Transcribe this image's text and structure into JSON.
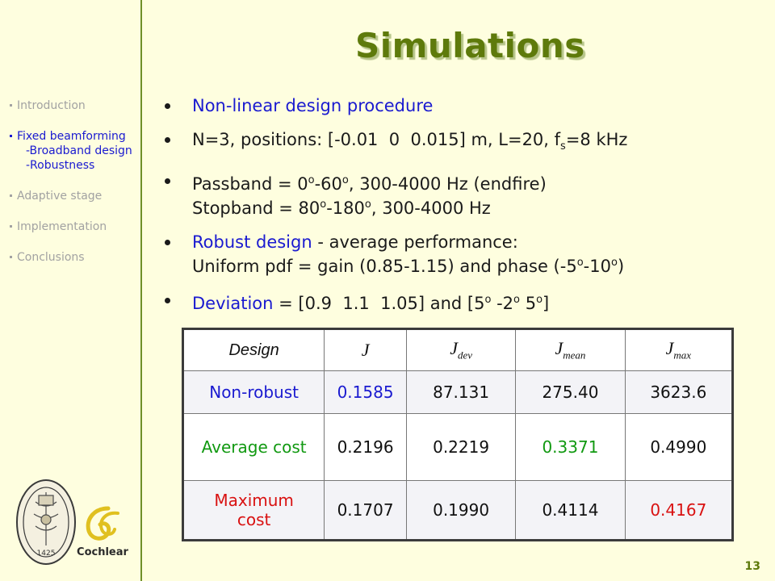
{
  "slide": {
    "title": "Simulations",
    "page_number": "13"
  },
  "nav": {
    "items": [
      "Introduction",
      "Fixed beamforming",
      "Adaptive stage",
      "Implementation",
      "Conclusions"
    ],
    "sub_items": [
      "-Broadband design",
      "-Robustness"
    ],
    "active": "Fixed beamforming"
  },
  "bullets": {
    "b1": "Non-linear design procedure",
    "b2_pre": "N=3, positions: [-0.01  0  0.015] m, L=20, f",
    "b2_sub": "s",
    "b2_post": "=8 kHz",
    "b3_line1_a": "Passband = 0",
    "b3_line1_b": "-60",
    "b3_line1_c": ", 300-4000 Hz (endfire)",
    "b3_line2_a": "Stopband = 80",
    "b3_line2_b": "-180",
    "b3_line2_c": ", 300-4000 Hz",
    "deg": "o",
    "b4_emph": "Robust design",
    "b4_rest": " - average performance:",
    "b4_line2_a": "Uniform pdf = gain (0.85-1.15) and phase (-5",
    "b4_line2_b": "-10",
    "b4_line2_c": ")",
    "b5_emph": "Deviation",
    "b5_a": " = [0.9  1.1  1.05] and [5",
    "b5_b": " -2",
    "b5_c": " 5",
    "b5_d": "]"
  },
  "table": {
    "headers": {
      "design": "Design",
      "j": "J",
      "j_dev": "J",
      "j_dev_sub": "dev",
      "j_mean": "J",
      "j_mean_sub": "mean",
      "j_max": "J",
      "j_max_sub": "max"
    },
    "rows": [
      {
        "label": "Non-robust",
        "values": [
          "0.1585",
          "87.131",
          "275.40",
          "3623.6"
        ]
      },
      {
        "label": "Average cost",
        "values": [
          "0.2196",
          "0.2219",
          "0.3371",
          "0.4990"
        ]
      },
      {
        "label_line1": "Maximum",
        "label_line2": "cost",
        "values": [
          "0.1707",
          "0.1990",
          "0.4114",
          "0.4167"
        ]
      }
    ],
    "colors": {
      "blue": "#1a1ad0",
      "green": "#119911",
      "red": "#d91111"
    }
  },
  "logos": {
    "seal_year": "1425",
    "cochlear": "Cochlear"
  }
}
